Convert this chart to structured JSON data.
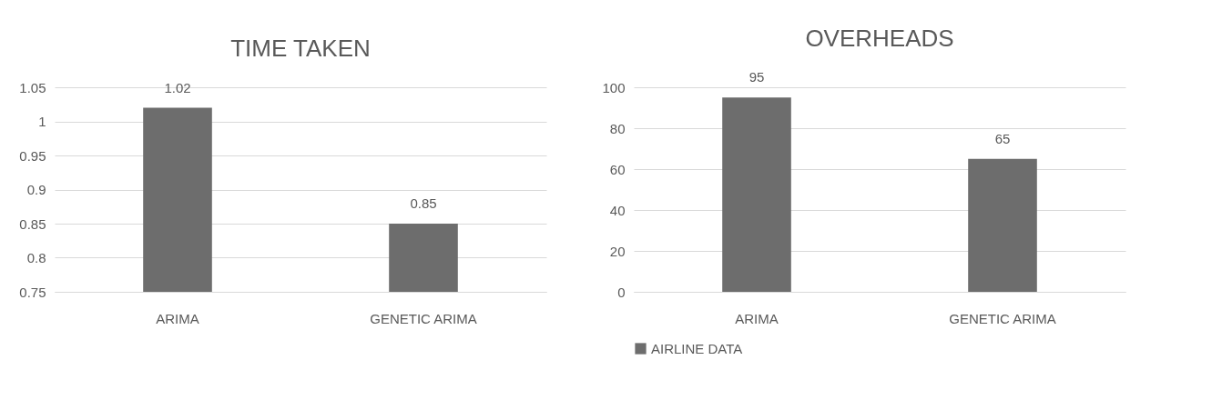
{
  "chart_data": [
    {
      "type": "bar",
      "title": "TIME TAKEN",
      "categories": [
        "ARIMA",
        "GENETIC ARIMA"
      ],
      "series": [
        {
          "color": "#6d6d6d",
          "values": [
            1.02,
            0.85
          ]
        }
      ],
      "ylim": [
        0.75,
        1.05
      ],
      "yticks": [
        0.75,
        0.8,
        0.85,
        0.9,
        0.95,
        1,
        1.05
      ],
      "grid": "y",
      "data_labels": true
    },
    {
      "type": "bar",
      "title": "OVERHEADS",
      "categories": [
        "ARIMA",
        "GENETIC ARIMA"
      ],
      "series": [
        {
          "name": "AIRLINE DATA",
          "color": "#6d6d6d",
          "values": [
            95,
            65
          ]
        }
      ],
      "ylim": [
        0,
        100
      ],
      "yticks": [
        0,
        20,
        40,
        60,
        80,
        100
      ],
      "grid": "y",
      "data_labels": true,
      "legend": "bottom"
    }
  ]
}
